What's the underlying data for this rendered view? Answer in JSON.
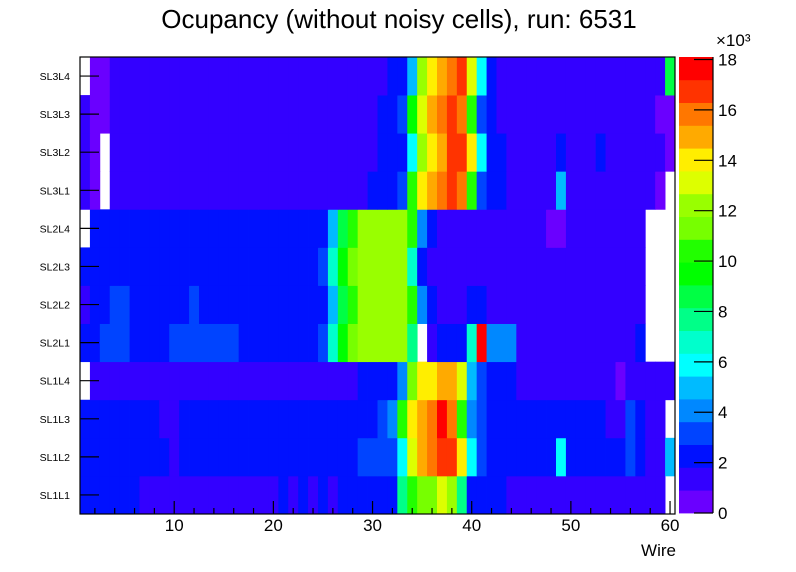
{
  "chart_data": {
    "type": "heatmap",
    "title": "Ocupancy (without noisy cells), run: 6531",
    "xlabel": "Wire",
    "ylabel": "",
    "xlim": [
      0.5,
      60.5
    ],
    "x_ticks": [
      10,
      20,
      30,
      40,
      50,
      60
    ],
    "y_categories": [
      "SL1L1",
      "SL1L2",
      "SL1L3",
      "SL1L4",
      "SL2L1",
      "SL2L2",
      "SL2L3",
      "SL2L4",
      "SL3L1",
      "SL3L2",
      "SL3L3",
      "SL3L4"
    ],
    "z_range": [
      0,
      18100
    ],
    "z_multiplier_label": "×10³",
    "z_ticks": [
      0,
      2,
      4,
      6,
      8,
      10,
      12,
      14,
      16,
      18
    ],
    "palette": [
      "#6a00ff",
      "#3300ff",
      "#0011ff",
      "#0044ff",
      "#0088ff",
      "#00bbff",
      "#00ffff",
      "#00ffcc",
      "#00ff88",
      "#00ff44",
      "#00ff00",
      "#22ff00",
      "#77ff00",
      "#99ff00",
      "#ddff00",
      "#ffee00",
      "#ffaa00",
      "#ff7700",
      "#ff3300",
      "#ff0000"
    ],
    "z": [
      [
        2300,
        2300,
        2300,
        2300,
        2300,
        2300,
        1400,
        1400,
        1400,
        1400,
        1400,
        1400,
        1400,
        1400,
        1400,
        1400,
        1400,
        1400,
        1400,
        1400,
        2300,
        1400,
        2300,
        1400,
        2300,
        1400,
        2300,
        2300,
        2300,
        2300,
        2300,
        2300,
        7700,
        10400,
        11300,
        11300,
        13100,
        12200,
        7700,
        2300,
        2300,
        2300,
        2300,
        1400,
        1400,
        1400,
        1400,
        1400,
        1400,
        1400,
        1400,
        1400,
        1400,
        1400,
        1400,
        1400,
        1400,
        1400,
        1400,
        0
      ],
      [
        2300,
        2300,
        2300,
        2300,
        2300,
        2300,
        2300,
        2300,
        2300,
        1400,
        2300,
        2300,
        2300,
        2300,
        2300,
        2300,
        2300,
        2300,
        2300,
        2300,
        2300,
        2300,
        2300,
        2300,
        2300,
        2300,
        2300,
        2300,
        3200,
        3200,
        3200,
        3200,
        5900,
        13100,
        14900,
        15800,
        16700,
        16700,
        14000,
        5900,
        3200,
        2300,
        2300,
        2300,
        2300,
        2300,
        2300,
        2300,
        5900,
        2300,
        2300,
        2300,
        2300,
        2300,
        2300,
        3200,
        2300,
        1400,
        1400,
        5000
      ],
      [
        2300,
        2300,
        2300,
        2300,
        2300,
        2300,
        2300,
        2300,
        1400,
        1400,
        2300,
        2300,
        2300,
        2300,
        2300,
        2300,
        2300,
        2300,
        2300,
        2300,
        2300,
        2300,
        2300,
        2300,
        2300,
        2300,
        2300,
        2300,
        2300,
        2300,
        3200,
        4100,
        10400,
        14000,
        14900,
        15800,
        17600,
        15800,
        10400,
        4100,
        3200,
        2300,
        2300,
        2300,
        2300,
        2300,
        2300,
        2300,
        2300,
        2300,
        2300,
        2300,
        2300,
        1400,
        1400,
        3200,
        2300,
        1400,
        1400,
        0
      ],
      [
        0,
        1400,
        1400,
        1400,
        1400,
        1400,
        1400,
        1400,
        1400,
        1400,
        1400,
        1400,
        1400,
        1400,
        1400,
        1400,
        1400,
        1400,
        1400,
        1400,
        1400,
        1400,
        1400,
        1400,
        1400,
        1400,
        1400,
        1400,
        2300,
        2300,
        2300,
        2300,
        4100,
        11300,
        14000,
        14000,
        14900,
        14900,
        13100,
        5000,
        3200,
        2300,
        2300,
        2300,
        1400,
        1400,
        1400,
        1400,
        1400,
        1400,
        1400,
        1400,
        1400,
        1400,
        500,
        1400,
        1400,
        1400,
        1400,
        1400
      ],
      [
        2300,
        2300,
        3200,
        3200,
        3200,
        2300,
        2300,
        2300,
        2300,
        3200,
        3200,
        3200,
        3200,
        3200,
        3200,
        3200,
        2300,
        2300,
        2300,
        2300,
        2300,
        2300,
        2300,
        2300,
        3200,
        6800,
        9500,
        11300,
        12200,
        12200,
        12200,
        12200,
        12200,
        7700,
        0,
        1400,
        2300,
        2300,
        2300,
        6800,
        17600,
        4100,
        4100,
        4100,
        1400,
        1400,
        1400,
        1400,
        1400,
        1400,
        1400,
        1400,
        1400,
        1400,
        1400,
        1400,
        2300,
        0,
        0,
        0
      ],
      [
        1400,
        2300,
        2300,
        3200,
        3200,
        2300,
        2300,
        2300,
        2300,
        2300,
        2300,
        3200,
        2300,
        2300,
        2300,
        2300,
        2300,
        2300,
        2300,
        2300,
        2300,
        2300,
        2300,
        2300,
        2300,
        5000,
        8600,
        10400,
        12200,
        12200,
        12200,
        12200,
        12200,
        10400,
        4100,
        2300,
        1400,
        1400,
        1400,
        2300,
        2300,
        1400,
        1400,
        1400,
        1400,
        1400,
        1400,
        1400,
        1400,
        1400,
        1400,
        1400,
        1400,
        1400,
        1400,
        1400,
        1400,
        0,
        0,
        0
      ],
      [
        2300,
        2300,
        2300,
        2300,
        2300,
        2300,
        2300,
        2300,
        2300,
        2300,
        2300,
        2300,
        2300,
        2300,
        2300,
        2300,
        2300,
        2300,
        2300,
        2300,
        2300,
        2300,
        2300,
        2300,
        3200,
        6800,
        9500,
        11300,
        12200,
        12200,
        12200,
        12200,
        12200,
        6800,
        2300,
        1400,
        1400,
        1400,
        1400,
        1400,
        1400,
        1400,
        1400,
        1400,
        1400,
        1400,
        1400,
        1400,
        1400,
        1400,
        1400,
        1400,
        1400,
        1400,
        1400,
        1400,
        1400,
        0,
        0,
        0
      ],
      [
        0,
        2300,
        2300,
        2300,
        2300,
        2300,
        2300,
        2300,
        2300,
        2300,
        2300,
        2300,
        2300,
        2300,
        2300,
        2300,
        2300,
        2300,
        2300,
        2300,
        2300,
        2300,
        2300,
        2300,
        2300,
        5000,
        8600,
        10400,
        12200,
        12200,
        12200,
        12200,
        12200,
        10400,
        4100,
        2300,
        1400,
        1400,
        1400,
        1400,
        1400,
        1400,
        1400,
        1400,
        1400,
        1400,
        1400,
        500,
        500,
        1400,
        1400,
        1400,
        1400,
        1400,
        1400,
        1400,
        1400,
        0,
        0,
        0
      ],
      [
        1400,
        500,
        0,
        1400,
        1400,
        1400,
        1400,
        1400,
        1400,
        1400,
        1400,
        1400,
        1400,
        1400,
        1400,
        1400,
        1400,
        1400,
        1400,
        1400,
        1400,
        1400,
        1400,
        1400,
        1400,
        1400,
        1400,
        1400,
        1400,
        2300,
        2300,
        2300,
        3200,
        10400,
        14000,
        14900,
        15800,
        16700,
        15800,
        10400,
        3200,
        2300,
        2300,
        1400,
        1400,
        1400,
        1400,
        1400,
        5000,
        1400,
        1400,
        1400,
        1400,
        1400,
        1400,
        1400,
        1400,
        1400,
        500,
        0
      ],
      [
        1400,
        500,
        0,
        1400,
        1400,
        1400,
        1400,
        1400,
        1400,
        1400,
        1400,
        1400,
        1400,
        1400,
        1400,
        1400,
        1400,
        1400,
        1400,
        1400,
        1400,
        1400,
        1400,
        1400,
        1400,
        1400,
        1400,
        1400,
        1400,
        1400,
        2300,
        2300,
        2300,
        5900,
        12200,
        14000,
        14900,
        16700,
        16700,
        14000,
        5900,
        2300,
        2300,
        1400,
        1400,
        1400,
        1400,
        1400,
        2300,
        1400,
        1400,
        1400,
        2300,
        1400,
        1400,
        1400,
        1400,
        1400,
        1400,
        500
      ],
      [
        1400,
        500,
        500,
        1400,
        1400,
        1400,
        1400,
        1400,
        1400,
        1400,
        1400,
        1400,
        1400,
        1400,
        1400,
        1400,
        1400,
        1400,
        1400,
        1400,
        1400,
        1400,
        1400,
        1400,
        1400,
        1400,
        1400,
        1400,
        1400,
        1400,
        2300,
        2300,
        3200,
        9500,
        13100,
        14900,
        15800,
        16700,
        15800,
        10400,
        3200,
        2300,
        1400,
        1400,
        1400,
        1400,
        1400,
        1400,
        1400,
        1400,
        1400,
        1400,
        1400,
        1400,
        1400,
        1400,
        1400,
        1400,
        500,
        500
      ],
      [
        0,
        500,
        500,
        1400,
        1400,
        1400,
        1400,
        1400,
        1400,
        1400,
        1400,
        1400,
        1400,
        1400,
        1400,
        1400,
        1400,
        1400,
        1400,
        1400,
        1400,
        1400,
        1400,
        1400,
        1400,
        1400,
        1400,
        1400,
        1400,
        1400,
        1400,
        2300,
        2300,
        5000,
        12200,
        14000,
        14900,
        15800,
        16700,
        13100,
        5900,
        2300,
        1400,
        1400,
        1400,
        1400,
        1400,
        1400,
        1400,
        1400,
        1400,
        1400,
        1400,
        1400,
        1400,
        1400,
        1400,
        1400,
        1400,
        8600
      ]
    ]
  }
}
